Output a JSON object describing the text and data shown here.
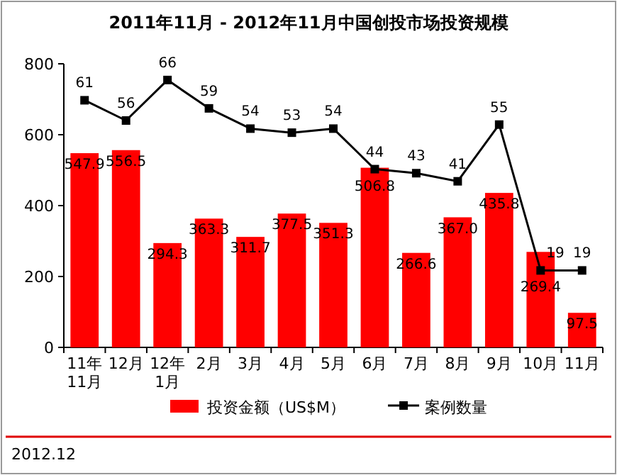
{
  "chart_data": {
    "type": "bar",
    "title": "2011年11月 - 2012年11月中国创投市场投资规模",
    "categories": [
      "11年\n11月",
      "12月",
      "12年\n1月",
      "2月",
      "3月",
      "4月",
      "5月",
      "6月",
      "7月",
      "8月",
      "9月",
      "10月",
      "11月"
    ],
    "series": [
      {
        "name": "投资金额（US$M）",
        "color": "#ff0000",
        "values": [
          547.9,
          556.5,
          294.3,
          363.3,
          311.7,
          377.5,
          351.3,
          506.8,
          266.6,
          367.0,
          435.8,
          269.4,
          97.5
        ],
        "value_labels": [
          "547.9",
          "556.5",
          "294.3",
          "363.3",
          "311.7",
          "377.5",
          "351.3",
          "506.8",
          "266.6",
          "367.0",
          "435.8",
          "269.4",
          "97.5"
        ]
      },
      {
        "name": "案例数量",
        "type": "line",
        "axis": "y2",
        "color": "#000000",
        "marker": "square",
        "values": [
          61,
          56,
          66,
          59,
          54,
          53,
          54,
          44,
          43,
          41,
          55,
          19,
          19
        ]
      }
    ],
    "ylim": [
      0,
      800
    ],
    "yticks": [
      0,
      200,
      400,
      600,
      800
    ],
    "y2lim": [
      0,
      70
    ],
    "tick_labels": "x,y",
    "data_labels": true,
    "legend": "bottom",
    "grid": false,
    "annotations": [
      "2012.12"
    ]
  }
}
